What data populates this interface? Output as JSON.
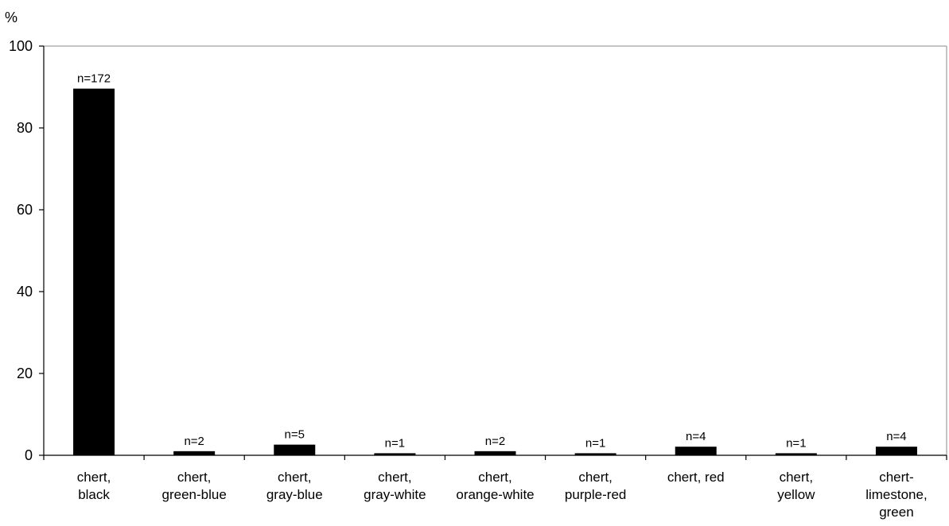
{
  "chart_data": {
    "type": "bar",
    "y_unit": "%",
    "categories": [
      [
        "chert,",
        "black"
      ],
      [
        "chert,",
        "green-blue"
      ],
      [
        "chert,",
        "gray-blue"
      ],
      [
        "chert,",
        "gray-white"
      ],
      [
        "chert,",
        "orange-white"
      ],
      [
        "chert,",
        "purple-red"
      ],
      [
        "chert, red"
      ],
      [
        "chert,",
        "yellow"
      ],
      [
        "chert-",
        "limestone,",
        "green"
      ]
    ],
    "values": [
      89.6,
      1.0,
      2.6,
      0.5,
      1.0,
      0.5,
      2.1,
      0.5,
      2.1
    ],
    "data_labels": [
      "n=172",
      "n=2",
      "n=5",
      "n=1",
      "n=2",
      "n=1",
      "n=4",
      "n=1",
      "n=4"
    ],
    "ylim": [
      0,
      100
    ],
    "yticks": [
      "0",
      "20",
      "40",
      "60",
      "80",
      "100"
    ],
    "ytick_values": [
      0,
      20,
      40,
      60,
      80,
      100
    ],
    "grid": false,
    "bar_color": "#000000",
    "axis_color": "#000000",
    "frame_color": "#888888"
  }
}
